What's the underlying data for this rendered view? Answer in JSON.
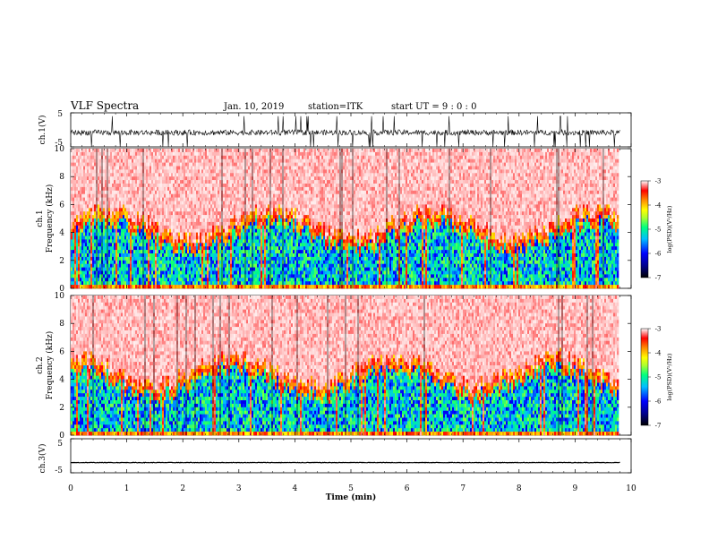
{
  "header": {
    "title": "VLF Spectra",
    "date": "Jan. 10, 2019",
    "station": "station=ITK",
    "start": "start UT = 9 : 0 : 0"
  },
  "chart_data": [
    {
      "type": "line",
      "name": "ch1_waveform",
      "ylabel": "ch.1(V)",
      "ylim": [
        -5,
        5
      ],
      "yticks": [
        "5",
        "-5"
      ],
      "xlim": [
        0,
        10
      ],
      "baseline": -0.8
    },
    {
      "type": "heatmap",
      "name": "ch1_spectrogram",
      "ylabel": "ch.1\nFrequency (kHz)",
      "ylim": [
        0,
        10
      ],
      "yticks": [
        "0",
        "2",
        "4",
        "6",
        "8",
        "10"
      ],
      "xlim": [
        0,
        9.8
      ],
      "colorbar": {
        "range": [
          -7,
          -3
        ],
        "ticks": [
          "-3",
          "-4",
          "-5",
          "-6",
          "-7"
        ],
        "label": "log(PSD)(V²/Hz)"
      }
    },
    {
      "type": "heatmap",
      "name": "ch2_spectrogram",
      "ylabel": "ch.2\nFrequency (kHz)",
      "ylim": [
        0,
        10
      ],
      "yticks": [
        "0",
        "2",
        "4",
        "6",
        "8",
        "10"
      ],
      "xlim": [
        0,
        9.8
      ],
      "colorbar": {
        "range": [
          -7,
          -3
        ],
        "ticks": [
          "-3",
          "-4",
          "-5",
          "-6",
          "-7"
        ],
        "label": "log(PSD)(V²/Hz)"
      }
    },
    {
      "type": "line",
      "name": "ch3_waveform",
      "ylabel": "ch.3(V)",
      "ylim": [
        -5,
        5
      ],
      "yticks": [
        "5",
        "-5"
      ],
      "xlim": [
        0,
        10
      ],
      "baseline": -2.0
    }
  ],
  "xaxis": {
    "label": "Time (min)",
    "ticks": [
      "0",
      "1",
      "2",
      "3",
      "4",
      "5",
      "6",
      "7",
      "8",
      "9",
      "10"
    ]
  },
  "colors": {
    "colormap": [
      "#000000",
      "#00008b",
      "#0000ff",
      "#00bfff",
      "#00ff7f",
      "#adff2f",
      "#ffff00",
      "#ff8c00",
      "#ff0000",
      "#ffb0b0",
      "#ffffff"
    ]
  }
}
